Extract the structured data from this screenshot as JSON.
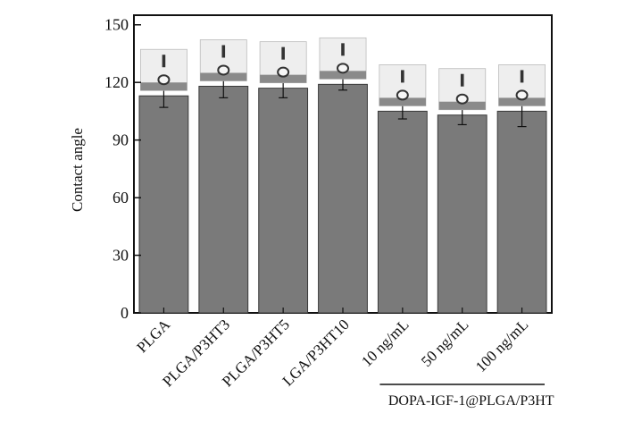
{
  "chart_data": {
    "type": "bar",
    "title": "",
    "xlabel": "",
    "ylabel": "Contact angle",
    "ylim": [
      0,
      155
    ],
    "yticks": [
      0,
      30,
      60,
      90,
      120,
      150
    ],
    "grid": false,
    "categories": [
      "PLGA",
      "PLGA/P3HT3",
      "PLGA/P3HT5",
      "LGA/P3HT10",
      "10 ng/mL",
      "50 ng/mL",
      "100 ng/mL"
    ],
    "values": [
      113,
      118,
      117,
      119,
      105,
      103,
      105
    ],
    "error": [
      6,
      6,
      5,
      3,
      4,
      5,
      8
    ],
    "group_label": "DOPA-IGF-1@PLGA/P3HT",
    "group_span": [
      4,
      6
    ],
    "bar_color": "#7a7a7a",
    "inset_images": "droplet contact-angle photos above each bar"
  }
}
